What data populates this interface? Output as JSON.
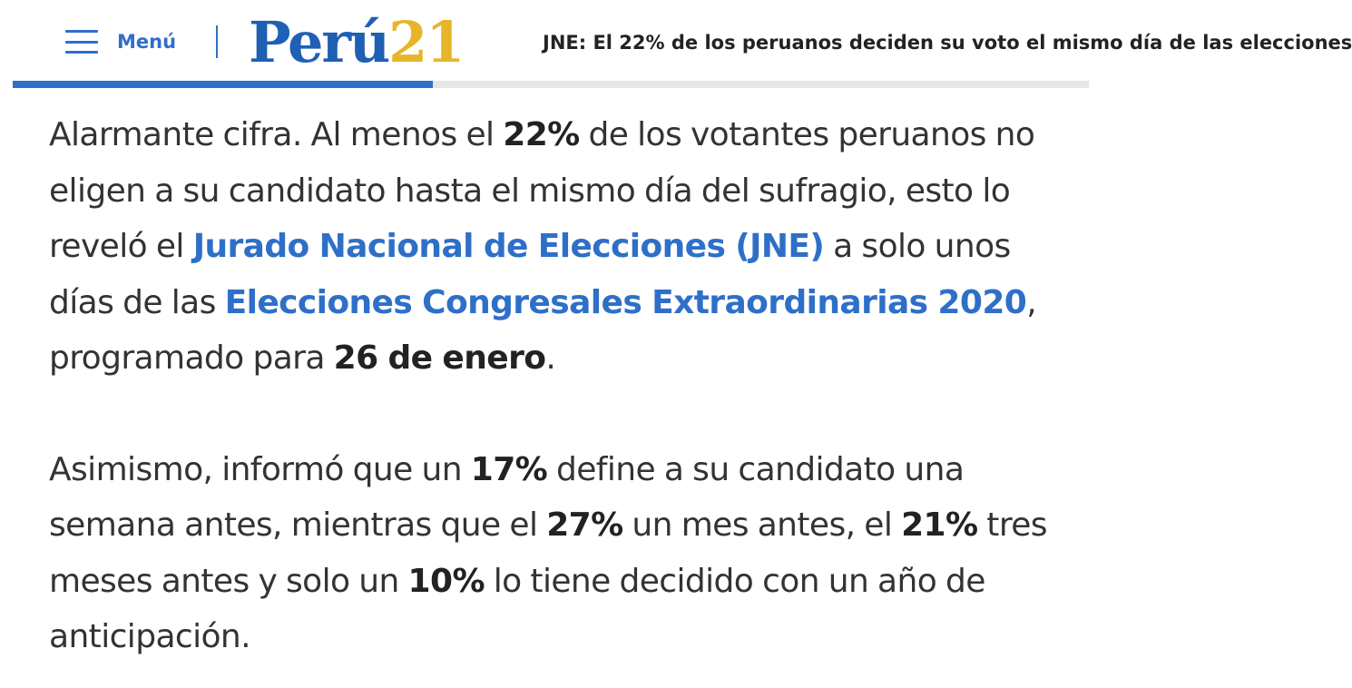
{
  "header": {
    "menu_label": "Menú",
    "logo_word": "Perú",
    "logo_number": "21",
    "headline": "JNE: El 22% de los peruanos deciden su voto el mismo día de las elecciones",
    "read_progress": 0.39,
    "colors": {
      "brand_blue": "#2e6fc8",
      "logo_blue": "#1f5fb4",
      "logo_gold": "#e6b52a"
    }
  },
  "article": {
    "p1": {
      "t1": "Alarmante cifra. Al menos el ",
      "b1": "22%",
      "t2": " de los votantes peruanos no eligen a su candidato hasta el mismo día del sufragio, esto lo reveló el ",
      "link1": "Jurado Nacional de Elecciones (JNE)",
      "t3": " a solo unos días de las ",
      "link2": "Elecciones Congresales Extraordinarias 2020",
      "t4": ", programado para ",
      "b2": "26 de enero",
      "t5": "."
    },
    "p2": {
      "t1": "Asimismo, informó que un ",
      "b1": "17%",
      "t2": " define a su candidato una semana antes, mientras que el ",
      "b2": "27%",
      "t3": " un mes antes, el ",
      "b3": "21%",
      "t4": " tres meses antes y solo un ",
      "b4": "10%",
      "t5": " lo tiene decidido con un año de anticipación."
    }
  }
}
